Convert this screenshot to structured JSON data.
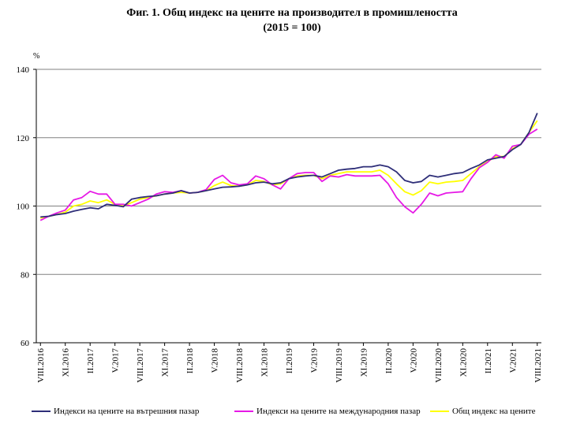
{
  "chart_data": {
    "type": "line",
    "title": "Фиг. 1. Общ индекс на цените на производител в промишлеността",
    "subtitle": "(2015 = 100)",
    "ylabel": "%",
    "xlabel": "",
    "ylim": [
      60,
      140
    ],
    "yticks": [
      "60",
      "80",
      "100",
      "120",
      "140"
    ],
    "x_tick_labels": [
      "VIII.2016",
      "XI.2016",
      "II.2017",
      "V.2017",
      "VIII.2017",
      "XI.2017",
      "II.2018",
      "V.2018",
      "VIII.2018",
      "XI.2018",
      "II.2019",
      "V.2019",
      "VIII.2019",
      "XI.2019",
      "II.2020",
      "V.2020",
      "VIII.2020",
      "XI.2020",
      "II.2021",
      "V.2021",
      "VIII.2021"
    ],
    "series": [
      {
        "name": "Индекси на цените на вътрешния пазар",
        "color": "#2e2e78",
        "values": [
          96.8,
          97.0,
          97.5,
          97.8,
          98.5,
          99.0,
          99.5,
          99.2,
          100.5,
          100.2,
          99.8,
          102.0,
          102.5,
          102.8,
          103.0,
          103.5,
          103.8,
          104.5,
          103.8,
          104.0,
          104.5,
          105.0,
          105.5,
          105.6,
          105.8,
          106.2,
          106.8,
          107.0,
          106.5,
          106.8,
          108.0,
          108.5,
          108.8,
          109.0,
          108.5,
          109.5,
          110.5,
          110.8,
          111.0,
          111.5,
          111.5,
          112.0,
          111.5,
          110.0,
          107.5,
          106.8,
          107.2,
          109.0,
          108.5,
          109.0,
          109.5,
          109.8,
          111.0,
          112.0,
          113.5,
          114.0,
          114.5,
          116.5,
          118.0,
          121.5,
          127.2
        ]
      },
      {
        "name": "Индекси на цените на международния пазар",
        "color": "#e619e6",
        "values": [
          95.8,
          97.0,
          98.0,
          98.8,
          101.8,
          102.5,
          104.3,
          103.5,
          103.5,
          100.5,
          100.5,
          100.0,
          101.0,
          102.0,
          103.5,
          104.2,
          104.0,
          104.5,
          103.8,
          104.0,
          104.8,
          107.8,
          109.0,
          106.8,
          106.2,
          106.5,
          108.8,
          108.0,
          106.2,
          105.0,
          108.0,
          109.5,
          109.8,
          109.8,
          107.2,
          108.8,
          108.5,
          109.2,
          108.8,
          108.8,
          108.8,
          109.0,
          106.5,
          102.5,
          99.8,
          98.0,
          100.5,
          103.8,
          103.0,
          103.8,
          104.0,
          104.2,
          108.0,
          111.2,
          112.8,
          115.0,
          114.0,
          117.5,
          118.0,
          121.0,
          122.5
        ]
      },
      {
        "name": "Общ индекс на цените",
        "color": "#ffff00",
        "values": [
          96.5,
          97.0,
          97.5,
          98.2,
          100.0,
          100.5,
          101.5,
          101.0,
          101.8,
          100.5,
          100.0,
          101.0,
          102.0,
          102.5,
          103.0,
          103.5,
          103.8,
          104.0,
          103.8,
          104.0,
          104.5,
          106.0,
          107.0,
          106.0,
          105.8,
          106.2,
          107.5,
          107.2,
          106.2,
          106.5,
          108.0,
          108.8,
          109.0,
          109.0,
          108.0,
          109.0,
          109.5,
          110.0,
          110.0,
          110.0,
          110.0,
          110.5,
          109.0,
          106.5,
          104.2,
          103.2,
          104.5,
          107.0,
          106.5,
          107.0,
          107.2,
          107.5,
          109.5,
          111.5,
          113.0,
          114.5,
          114.5,
          116.8,
          118.0,
          121.5,
          125.0
        ]
      }
    ]
  }
}
